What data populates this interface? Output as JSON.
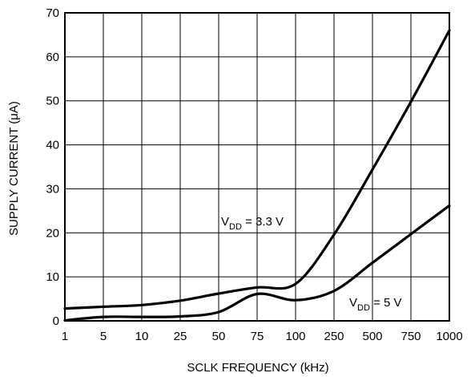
{
  "chart_data": {
    "type": "line",
    "xlabel": "SCLK FREQUENCY (kHz)",
    "ylabel_parts": [
      "SUPPLY CURRENT (",
      "μ",
      "A)"
    ],
    "ylim": [
      0,
      70
    ],
    "x_categories": [
      "1",
      "5",
      "10",
      "25",
      "50",
      "75",
      "100",
      "250",
      "500",
      "750",
      "1000"
    ],
    "y_ticks": [
      "0",
      "10",
      "20",
      "30",
      "40",
      "50",
      "60",
      "70"
    ],
    "grid": true,
    "series": [
      {
        "id": "vdd33",
        "name_parts": [
          "V",
          "DD",
          " = 3.3 V"
        ],
        "x": [
          "1",
          "5",
          "10",
          "25",
          "50",
          "75",
          "100",
          "250",
          "500",
          "750",
          "1000"
        ],
        "values": [
          2.8,
          3.2,
          3.6,
          4.6,
          6.2,
          7.6,
          8.4,
          19.6,
          34.4,
          49.8,
          66.0
        ]
      },
      {
        "id": "vdd5",
        "name_parts": [
          "V",
          "DD",
          " = 5 V"
        ],
        "x": [
          "1",
          "5",
          "10",
          "25",
          "50",
          "75",
          "100",
          "250",
          "500",
          "750",
          "1000"
        ],
        "values": [
          0.1,
          0.9,
          0.9,
          1.0,
          2.0,
          6.1,
          4.7,
          6.8,
          13.2,
          19.7,
          26.2
        ]
      }
    ],
    "color": "#000000"
  }
}
